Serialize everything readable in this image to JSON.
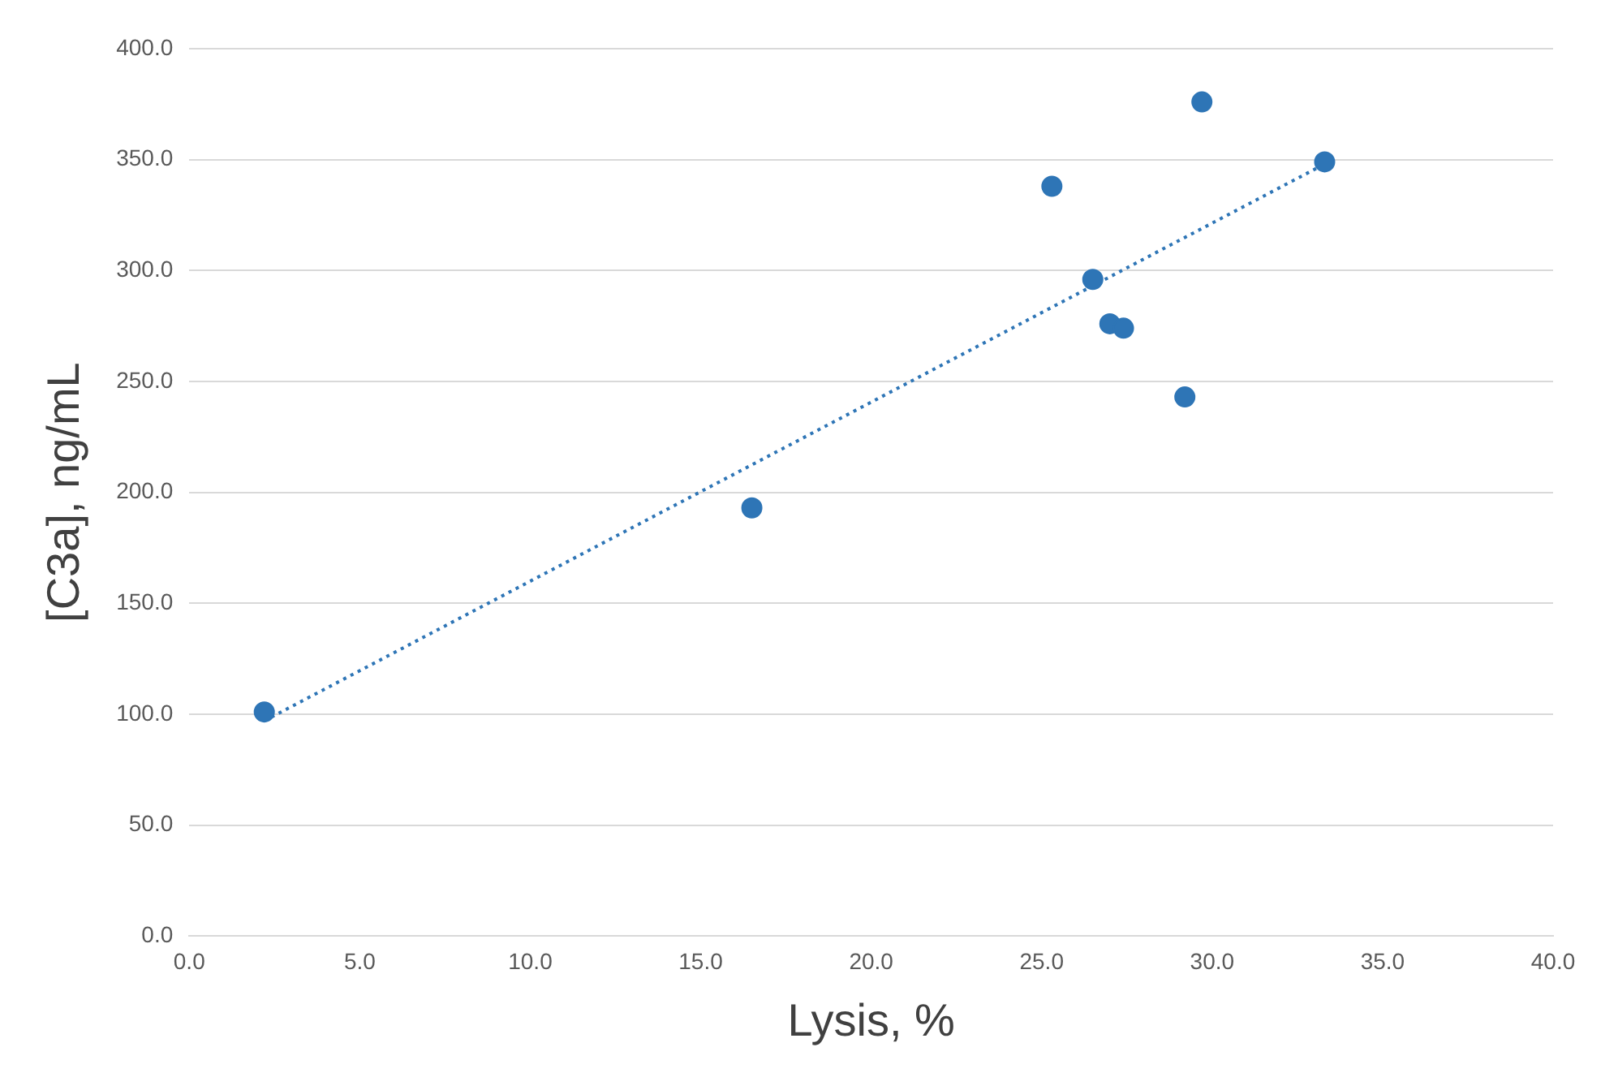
{
  "chart_data": {
    "type": "scatter",
    "xlabel": "Lysis, %",
    "ylabel": "[C3a], ng/mL",
    "xlim": [
      0,
      40
    ],
    "xticks": [
      {
        "value": 0,
        "label": "0.0"
      },
      {
        "value": 5,
        "label": "5.0"
      },
      {
        "value": 10,
        "label": "10.0"
      },
      {
        "value": 15,
        "label": "15.0"
      },
      {
        "value": 20,
        "label": "20.0"
      },
      {
        "value": 25,
        "label": "25.0"
      },
      {
        "value": 30,
        "label": "30.0"
      },
      {
        "value": 35,
        "label": "35.0"
      },
      {
        "value": 40,
        "label": "40.0"
      }
    ],
    "ylim": [
      0,
      400
    ],
    "yticks": [
      {
        "value": 0,
        "label": "0.0"
      },
      {
        "value": 50,
        "label": "50.0"
      },
      {
        "value": 100,
        "label": "100.0"
      },
      {
        "value": 150,
        "label": "150.0"
      },
      {
        "value": 200,
        "label": "200.0"
      },
      {
        "value": 250,
        "label": "250.0"
      },
      {
        "value": 300,
        "label": "300.0"
      },
      {
        "value": 350,
        "label": "350.0"
      },
      {
        "value": 400,
        "label": "400.0"
      }
    ],
    "grid": "y",
    "legend": false,
    "marker": "circle",
    "series": [
      {
        "type": "scatter",
        "color": "#2e75b6",
        "x": [
          2.2,
          16.5,
          25.3,
          26.5,
          27.0,
          27.4,
          29.2,
          29.7,
          33.3
        ],
        "values": [
          101,
          193,
          338,
          296,
          276,
          274,
          243,
          376,
          349
        ]
      },
      {
        "type": "line",
        "color": "#2e75b6",
        "line_style": "dotted",
        "marker": "none",
        "x": [
          2.2,
          33.3
        ],
        "values": [
          97,
          348
        ]
      }
    ]
  }
}
